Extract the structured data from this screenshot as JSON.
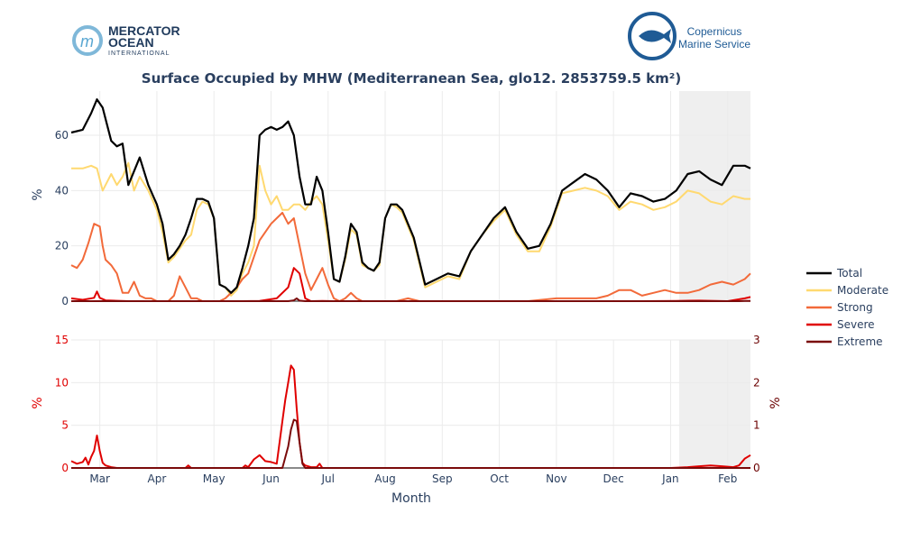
{
  "logos": {
    "left_line1": "MERCATOR",
    "left_line2": "OCEAN",
    "left_line3": "INTERNATIONAL",
    "right_line1": "Copernicus",
    "right_line2": "Marine Service"
  },
  "colors": {
    "total": "#000000",
    "moderate": "#ffd970",
    "strong": "#f26a3a",
    "severe": "#e00000",
    "extreme": "#7a0b0b",
    "forecast_shade": "#efefef",
    "grid": "#ebebeb",
    "text": "#2a3f5f"
  },
  "chart_data": {
    "type": "line",
    "title": "Surface Occupied by MHW (Mediterranean Sea, glo12. 2853759.5 km²)",
    "xlabel": "Month",
    "x_tick_labels": [
      "Mar",
      "Apr",
      "May",
      "Jun",
      "Jul",
      "Aug",
      "Sep",
      "Oct",
      "Nov",
      "Dec",
      "Jan",
      "Feb"
    ],
    "x_range_months": [
      0,
      11.9
    ],
    "forecast_region": [
      10.65,
      11.9
    ],
    "top_panel": {
      "ylabel": "%",
      "ylim": [
        0,
        76
      ],
      "yticks": [
        0,
        20,
        40,
        60
      ],
      "series": [
        {
          "name": "Total",
          "x": [
            0,
            0.2,
            0.35,
            0.45,
            0.55,
            0.7,
            0.8,
            0.9,
            1.0,
            1.1,
            1.2,
            1.35,
            1.5,
            1.6,
            1.7,
            1.8,
            1.9,
            2.0,
            2.1,
            2.2,
            2.3,
            2.4,
            2.5,
            2.6,
            2.7,
            2.8,
            2.9,
            3.0,
            3.1,
            3.2,
            3.3,
            3.4,
            3.5,
            3.6,
            3.7,
            3.8,
            3.9,
            4.0,
            4.1,
            4.2,
            4.3,
            4.4,
            4.5,
            4.6,
            4.7,
            4.8,
            4.9,
            5.0,
            5.1,
            5.2,
            5.3,
            5.4,
            5.5,
            5.6,
            5.7,
            5.8,
            5.9,
            6.0,
            6.2,
            6.4,
            6.6,
            6.8,
            7.0,
            7.2,
            7.4,
            7.6,
            7.8,
            8.0,
            8.2,
            8.4,
            8.6,
            8.8,
            9.0,
            9.2,
            9.4,
            9.6,
            9.8,
            10.0,
            10.2,
            10.4,
            10.6,
            10.8,
            11.0,
            11.2,
            11.4,
            11.6,
            11.8,
            11.9
          ],
          "values": [
            61,
            62,
            68,
            73,
            70,
            58,
            56,
            57,
            42,
            47,
            52,
            42,
            35,
            28,
            15,
            17,
            20,
            24,
            30,
            37,
            37,
            36,
            30,
            6,
            5,
            3,
            5,
            12,
            20,
            30,
            60,
            62,
            63,
            62,
            63,
            65,
            60,
            45,
            35,
            35,
            45,
            40,
            25,
            8,
            7,
            16,
            28,
            25,
            14,
            12,
            11,
            14,
            30,
            35,
            35,
            33,
            28,
            23,
            6,
            8,
            10,
            9,
            18,
            24,
            30,
            34,
            25,
            19,
            20,
            28,
            40,
            43,
            46,
            44,
            40,
            34,
            39,
            38,
            36,
            37,
            40,
            46,
            47,
            44,
            42,
            49,
            49,
            48
          ]
        },
        {
          "name": "Moderate",
          "x": [
            0,
            0.2,
            0.35,
            0.45,
            0.55,
            0.7,
            0.8,
            0.9,
            1.0,
            1.1,
            1.2,
            1.35,
            1.5,
            1.6,
            1.7,
            1.8,
            1.9,
            2.0,
            2.1,
            2.2,
            2.3,
            2.4,
            2.5,
            2.6,
            2.7,
            2.8,
            2.9,
            3.0,
            3.1,
            3.2,
            3.3,
            3.4,
            3.5,
            3.6,
            3.7,
            3.8,
            3.9,
            4.0,
            4.1,
            4.2,
            4.3,
            4.4,
            4.5,
            4.6,
            4.7,
            4.8,
            4.9,
            5.0,
            5.1,
            5.2,
            5.3,
            5.4,
            5.5,
            5.6,
            5.7,
            5.8,
            5.9,
            6.0,
            6.2,
            6.4,
            6.6,
            6.8,
            7.0,
            7.2,
            7.4,
            7.6,
            7.8,
            8.0,
            8.2,
            8.4,
            8.6,
            8.8,
            9.0,
            9.2,
            9.4,
            9.6,
            9.8,
            10.0,
            10.2,
            10.4,
            10.6,
            10.8,
            11.0,
            11.2,
            11.4,
            11.6,
            11.8,
            11.9
          ],
          "values": [
            48,
            48,
            49,
            48,
            40,
            46,
            42,
            45,
            50,
            40,
            45,
            40,
            33,
            25,
            14,
            16,
            19,
            22,
            24,
            33,
            36,
            35,
            30,
            6,
            5,
            2,
            4,
            10,
            14,
            20,
            49,
            40,
            35,
            38,
            33,
            33,
            35,
            35,
            33,
            36,
            38,
            35,
            22,
            8,
            7,
            15,
            26,
            24,
            13,
            12,
            11,
            13,
            30,
            35,
            34,
            32,
            27,
            22,
            5,
            7,
            9,
            8,
            18,
            24,
            29,
            33,
            24,
            18,
            18,
            27,
            39,
            40,
            41,
            40,
            38,
            33,
            36,
            35,
            33,
            34,
            36,
            40,
            39,
            36,
            35,
            38,
            37,
            37
          ]
        },
        {
          "name": "Strong",
          "x": [
            0,
            0.1,
            0.2,
            0.3,
            0.4,
            0.5,
            0.55,
            0.6,
            0.7,
            0.8,
            0.9,
            1.0,
            1.1,
            1.2,
            1.3,
            1.4,
            1.5,
            1.6,
            1.7,
            1.8,
            1.9,
            2.0,
            2.1,
            2.2,
            2.3,
            2.4,
            2.5,
            2.6,
            2.7,
            2.8,
            2.9,
            3.0,
            3.1,
            3.2,
            3.3,
            3.4,
            3.5,
            3.6,
            3.7,
            3.8,
            3.9,
            4.0,
            4.1,
            4.2,
            4.3,
            4.4,
            4.5,
            4.6,
            4.7,
            4.8,
            4.9,
            5.0,
            5.1,
            5.3,
            5.5,
            5.7,
            5.9,
            6.1,
            6.5,
            7.0,
            7.5,
            8.0,
            8.5,
            9.0,
            9.2,
            9.4,
            9.6,
            9.8,
            10.0,
            10.2,
            10.4,
            10.6,
            10.8,
            11.0,
            11.2,
            11.4,
            11.6,
            11.8,
            11.9
          ],
          "values": [
            13,
            12,
            15,
            21,
            28,
            27,
            20,
            15,
            13,
            10,
            3,
            3,
            7,
            2,
            1,
            1,
            0,
            0,
            0,
            2,
            9,
            5,
            1,
            1,
            0,
            0,
            0,
            0,
            1,
            3,
            5,
            8,
            10,
            16,
            22,
            25,
            28,
            30,
            32,
            28,
            30,
            20,
            10,
            4,
            8,
            12,
            6,
            1,
            0,
            1,
            3,
            1,
            0,
            0,
            0,
            0,
            1,
            0,
            0,
            0,
            0,
            0,
            1,
            1,
            1,
            2,
            4,
            4,
            2,
            3,
            4,
            3,
            3,
            4,
            6,
            7,
            6,
            8,
            10
          ]
        },
        {
          "name": "Severe",
          "x": [
            0,
            0.2,
            0.4,
            0.45,
            0.5,
            0.6,
            1.0,
            2.0,
            2.5,
            3.0,
            3.3,
            3.6,
            3.8,
            3.9,
            4.0,
            4.1,
            4.2,
            4.4,
            4.6,
            5.0,
            6.0,
            7.0,
            8.0,
            9.0,
            10.0,
            10.6,
            11.0,
            11.5,
            11.8,
            11.9
          ],
          "values": [
            1,
            0.5,
            1.2,
            3.5,
            1.2,
            0.3,
            0,
            0,
            0,
            0,
            0.1,
            1,
            5,
            12,
            10,
            1,
            0,
            0.1,
            0,
            0,
            0,
            0,
            0,
            0,
            0,
            0.1,
            0.2,
            0,
            1,
            1.5
          ]
        },
        {
          "name": "Extreme",
          "x": [
            0,
            3.8,
            3.9,
            3.95,
            4.0,
            4.1,
            6.0,
            9.0,
            11.0,
            11.7,
            11.8,
            11.9
          ],
          "values": [
            0,
            0,
            0.3,
            1.0,
            0.2,
            0,
            0,
            0,
            0,
            0,
            0.1,
            0.1
          ]
        }
      ]
    },
    "bottom_panel": {
      "ylabel_left": "%",
      "ylabel_right": "%",
      "ylim_left": [
        0,
        15
      ],
      "yticks_left": [
        0,
        5,
        10,
        15
      ],
      "ylim_right": [
        0,
        3
      ],
      "yticks_right": [
        0,
        1,
        2,
        3
      ],
      "series": [
        {
          "name": "Severe",
          "axis": "left",
          "x": [
            0,
            0.1,
            0.2,
            0.25,
            0.3,
            0.35,
            0.4,
            0.45,
            0.5,
            0.55,
            0.6,
            0.7,
            0.8,
            1.0,
            1.5,
            2.0,
            2.05,
            2.1,
            2.5,
            3.0,
            3.05,
            3.1,
            3.2,
            3.3,
            3.4,
            3.5,
            3.6,
            3.7,
            3.75,
            3.8,
            3.85,
            3.9,
            3.95,
            4.0,
            4.05,
            4.1,
            4.2,
            4.3,
            4.35,
            4.4,
            5.0,
            6.0,
            7.0,
            8.0,
            9.0,
            10.0,
            10.5,
            10.8,
            11.0,
            11.2,
            11.4,
            11.6,
            11.7,
            11.8,
            11.9
          ],
          "values": [
            0.8,
            0.5,
            0.7,
            1.2,
            0.4,
            1.3,
            2.0,
            3.8,
            2.0,
            0.6,
            0.3,
            0.1,
            0,
            0,
            0,
            0,
            0.3,
            0,
            0,
            0,
            0.3,
            0.1,
            1.0,
            1.5,
            0.8,
            0.7,
            0.5,
            5.5,
            8,
            10,
            12,
            11.5,
            7,
            3,
            0.6,
            0.3,
            0.1,
            0.1,
            0.5,
            0,
            0,
            0,
            0,
            0,
            0,
            0,
            0,
            0.1,
            0.2,
            0.3,
            0.2,
            0.1,
            0.3,
            1.1,
            1.5
          ]
        },
        {
          "name": "Extreme",
          "axis": "right",
          "x": [
            0,
            3.7,
            3.8,
            3.85,
            3.9,
            3.95,
            4.0,
            4.05,
            4.1,
            6.0,
            11.0,
            11.9
          ],
          "values": [
            0,
            0,
            0.5,
            0.9,
            1.13,
            1.1,
            0.6,
            0.1,
            0,
            0,
            0,
            0
          ]
        }
      ]
    },
    "legend": [
      "Total",
      "Moderate",
      "Strong",
      "Severe",
      "Extreme"
    ]
  }
}
